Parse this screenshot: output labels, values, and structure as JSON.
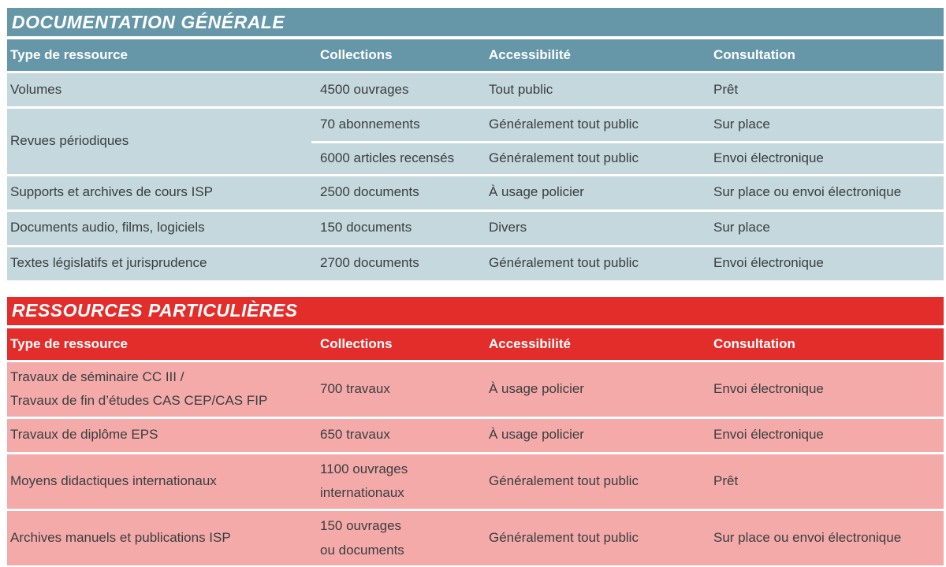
{
  "tables": [
    {
      "title": "DOCUMENTATION GÉNÉRALE",
      "theme": {
        "header_bg": "#6697a9",
        "row_bg": "#c4d8de",
        "header_text": "#ffffff",
        "body_text": "#3a3d40"
      },
      "columns": [
        "Type de ressource",
        "Collections",
        "Accessibilité",
        "Consultation"
      ],
      "rows": [
        {
          "resource": [
            "Volumes"
          ],
          "entries": [
            {
              "collections": [
                "4500 ouvrages"
              ],
              "accessibility": "Tout public",
              "consultation": "Prêt"
            }
          ]
        },
        {
          "resource": [
            "Revues périodiques"
          ],
          "entries": [
            {
              "collections": [
                "70 abonnements"
              ],
              "accessibility": "Généralement tout public",
              "consultation": "Sur place"
            },
            {
              "collections": [
                "6000 articles recensés"
              ],
              "accessibility": "Généralement tout public",
              "consultation": "Envoi électronique"
            }
          ]
        },
        {
          "resource": [
            "Supports et archives de cours ISP"
          ],
          "entries": [
            {
              "collections": [
                "2500 documents"
              ],
              "accessibility": "À usage policier",
              "consultation": "Sur place ou envoi électronique"
            }
          ]
        },
        {
          "resource": [
            "Documents audio, films, logiciels"
          ],
          "entries": [
            {
              "collections": [
                "150 documents"
              ],
              "accessibility": "Divers",
              "consultation": "Sur place"
            }
          ]
        },
        {
          "resource": [
            "Textes législatifs et jurisprudence"
          ],
          "entries": [
            {
              "collections": [
                "2700 documents"
              ],
              "accessibility": "Généralement tout public",
              "consultation": "Envoi électronique"
            }
          ]
        }
      ]
    },
    {
      "title": "RESSOURCES PARTICULIÈRES",
      "theme": {
        "header_bg": "#e32d2a",
        "row_bg": "#f4aaa9",
        "header_text": "#ffffff",
        "body_text": "#3a3d40"
      },
      "columns": [
        "Type de ressource",
        "Collections",
        "Accessibilité",
        "Consultation"
      ],
      "rows": [
        {
          "resource": [
            "Travaux de séminaire CC III /",
            "Travaux de fin d’études CAS CEP/CAS FIP"
          ],
          "entries": [
            {
              "collections": [
                "700 travaux"
              ],
              "accessibility": "À usage policier",
              "consultation": "Envoi électronique"
            }
          ]
        },
        {
          "resource": [
            "Travaux de diplôme EPS"
          ],
          "entries": [
            {
              "collections": [
                "650 travaux"
              ],
              "accessibility": "À usage policier",
              "consultation": "Envoi électronique"
            }
          ]
        },
        {
          "resource": [
            "Moyens didactiques internationaux"
          ],
          "entries": [
            {
              "collections": [
                "1100 ouvrages",
                "internationaux"
              ],
              "accessibility": "Généralement tout public",
              "consultation": "Prêt"
            }
          ]
        },
        {
          "resource": [
            "Archives manuels et publications ISP"
          ],
          "entries": [
            {
              "collections": [
                "150 ouvrages",
                "ou documents"
              ],
              "accessibility": "Généralement tout public",
              "consultation": "Sur place ou envoi électronique"
            }
          ]
        }
      ]
    }
  ]
}
